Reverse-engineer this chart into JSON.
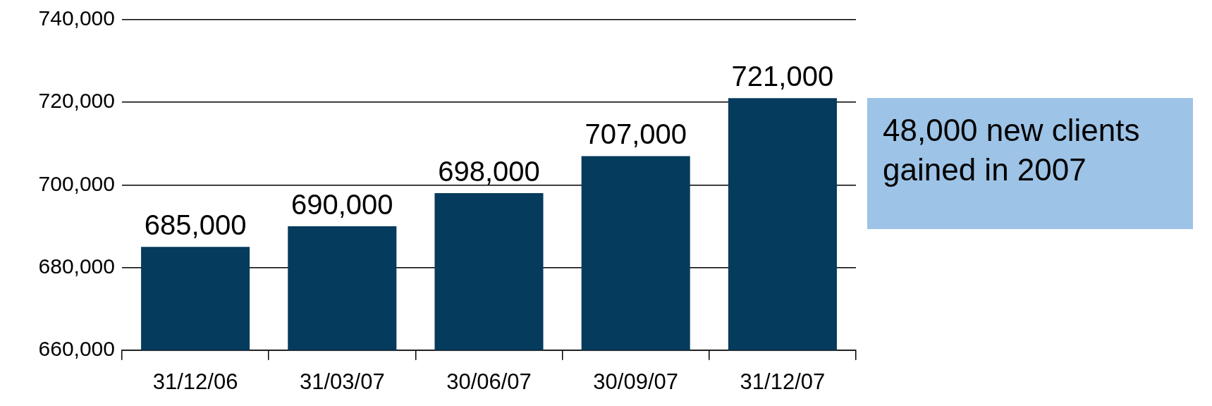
{
  "chart_data": {
    "type": "bar",
    "categories": [
      "31/12/06",
      "31/03/07",
      "30/06/07",
      "30/09/07",
      "31/12/07"
    ],
    "values": [
      685000,
      690000,
      698000,
      707000,
      721000
    ],
    "color": "#053b5c",
    "value_labels": [
      "685,000",
      "690,000",
      "698,000",
      "707,000",
      "721,000"
    ],
    "ylim": [
      660000,
      740000
    ],
    "yticks": [
      {
        "value": 660000,
        "label": "660,000"
      },
      {
        "value": 680000,
        "label": "680,000"
      },
      {
        "value": 700000,
        "label": "700,000"
      },
      {
        "value": 720000,
        "label": "720,000"
      },
      {
        "value": 740000,
        "label": "740,000"
      }
    ],
    "grid": "y",
    "legend": false,
    "annotations": [
      "48,000 new clients gained in 2007"
    ]
  }
}
